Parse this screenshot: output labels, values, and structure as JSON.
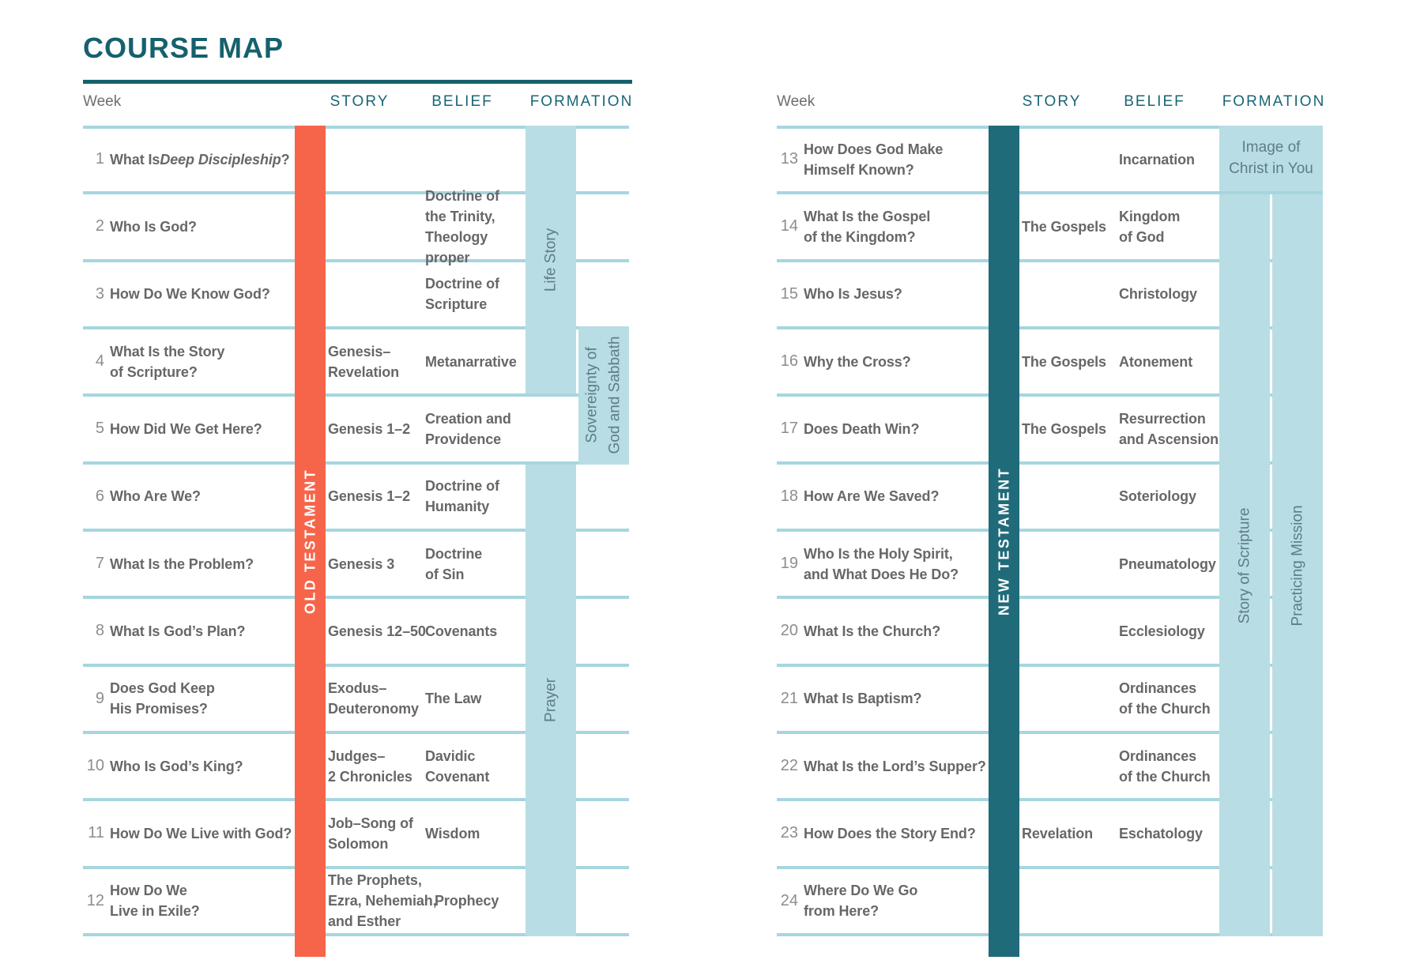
{
  "title": "COURSE MAP",
  "columns": {
    "week": "Week",
    "story": "STORY",
    "belief": "BELIEF",
    "formation": "FORMATION"
  },
  "colors": {
    "title_teal": "#15616d",
    "header_teal": "#1a6575",
    "old_testament_bar": "#f6654a",
    "new_testament_bar": "#206b7a",
    "formation_panel": "#b9dde4",
    "row_line": "#a6d6df",
    "body_text": "#66676a",
    "week_number": "#8b8d90",
    "panel_text": "#5d7d89"
  },
  "tables": [
    {
      "id": "old-testament",
      "bar_label": "OLD TESTAMENT",
      "bar_color": "#f6654a",
      "rows": [
        {
          "week": "1",
          "question_parts": [
            {
              "t": "What Is "
            },
            {
              "t": "Deep Discipleship",
              "i": true
            },
            {
              "t": "?"
            }
          ],
          "story": "",
          "belief": ""
        },
        {
          "week": "2",
          "question": "Who Is God?",
          "story": "",
          "belief": "Doctrine of\nthe Trinity,\nTheology\nproper"
        },
        {
          "week": "3",
          "question": "How Do We Know God?",
          "story": "",
          "belief": "Doctrine of\nScripture"
        },
        {
          "week": "4",
          "question": "What Is the Story\nof Scripture?",
          "story": "Genesis–\nRevelation",
          "belief": "Metanarrative"
        },
        {
          "week": "5",
          "question": "How Did We Get Here?",
          "story": "Genesis 1–2",
          "belief": "Creation and\nProvidence"
        },
        {
          "week": "6",
          "question": "Who Are We?",
          "story": "Genesis 1–2",
          "belief": "Doctrine of\nHumanity"
        },
        {
          "week": "7",
          "question": "What Is the Problem?",
          "story": "Genesis 3",
          "belief": "Doctrine\nof Sin"
        },
        {
          "week": "8",
          "question": "What Is God’s Plan?",
          "story": "Genesis 12–50",
          "belief": "Covenants"
        },
        {
          "week": "9",
          "question": "Does God Keep\nHis Promises?",
          "story": "Exodus–\nDeuteronomy",
          "belief": "The Law"
        },
        {
          "week": "10",
          "question": "Who Is God’s King?",
          "story": "Judges–\n2 Chronicles",
          "belief": "Davidic\nCovenant"
        },
        {
          "week": "11",
          "question": "How Do We Live with God?",
          "story": "Job–Song of\nSolomon",
          "belief": "Wisdom"
        },
        {
          "week": "12",
          "question": "How Do We\nLive in Exile?",
          "story": "The Prophets,\nEzra, Nehemiah,\nand Esther",
          "belief": "Prophecy",
          "belief_indent": 12
        }
      ],
      "formation_panels": [
        {
          "label": "Life Story",
          "column": 1,
          "row_start": 0,
          "row_end": 3,
          "orientation": "vertical"
        },
        {
          "label": "Sovereignty of\nGod and Sabbath",
          "column": 2,
          "row_start": 3,
          "row_end": 4,
          "orientation": "vertical",
          "covers_lines": true
        },
        {
          "label": "Prayer",
          "column": 1,
          "row_start": 5,
          "row_end": 11,
          "orientation": "vertical"
        }
      ]
    },
    {
      "id": "new-testament",
      "bar_label": "NEW TESTAMENT",
      "bar_color": "#206b7a",
      "rows": [
        {
          "week": "13",
          "question": "How Does God Make\nHimself Known?",
          "story": "",
          "belief": "Incarnation"
        },
        {
          "week": "14",
          "question": "What Is the Gospel\nof the Kingdom?",
          "story": "The Gospels",
          "belief": "Kingdom\nof God"
        },
        {
          "week": "15",
          "question": "Who Is Jesus?",
          "story": "",
          "belief": "Christology"
        },
        {
          "week": "16",
          "question": "Why the Cross?",
          "story": "The Gospels",
          "belief": "Atonement"
        },
        {
          "week": "17",
          "question": "Does Death Win?",
          "story": "The Gospels",
          "belief": "Resurrection\nand Ascension"
        },
        {
          "week": "18",
          "question": "How Are We Saved?",
          "story": "",
          "belief": "Soteriology"
        },
        {
          "week": "19",
          "question": "Who Is the Holy Spirit,\nand What Does He Do?",
          "story": "",
          "belief": "Pneumatology"
        },
        {
          "week": "20",
          "question": "What Is the Church?",
          "story": "",
          "belief": "Ecclesiology"
        },
        {
          "week": "21",
          "question": "What Is Baptism?",
          "story": "",
          "belief": "Ordinances\nof the Church"
        },
        {
          "week": "22",
          "question": "What Is the Lord’s Supper?",
          "story": "",
          "belief": "Ordinances\nof the Church"
        },
        {
          "week": "23",
          "question": "How Does the Story End?",
          "story": "Revelation",
          "belief": "Eschatology"
        },
        {
          "week": "24",
          "question": "Where Do We Go\nfrom Here?",
          "story": "",
          "belief": ""
        }
      ],
      "formation_panels": [
        {
          "label": "Image of\nChrist in You",
          "column": "both",
          "row_start": 0,
          "row_end": 0,
          "orientation": "horizontal"
        },
        {
          "label": "Story of Scripture",
          "column": 1,
          "row_start": 1,
          "row_end": 11,
          "orientation": "vertical"
        },
        {
          "label": "Practicing Mission",
          "column": 2,
          "row_start": 1,
          "row_end": 11,
          "orientation": "vertical"
        }
      ]
    }
  ]
}
